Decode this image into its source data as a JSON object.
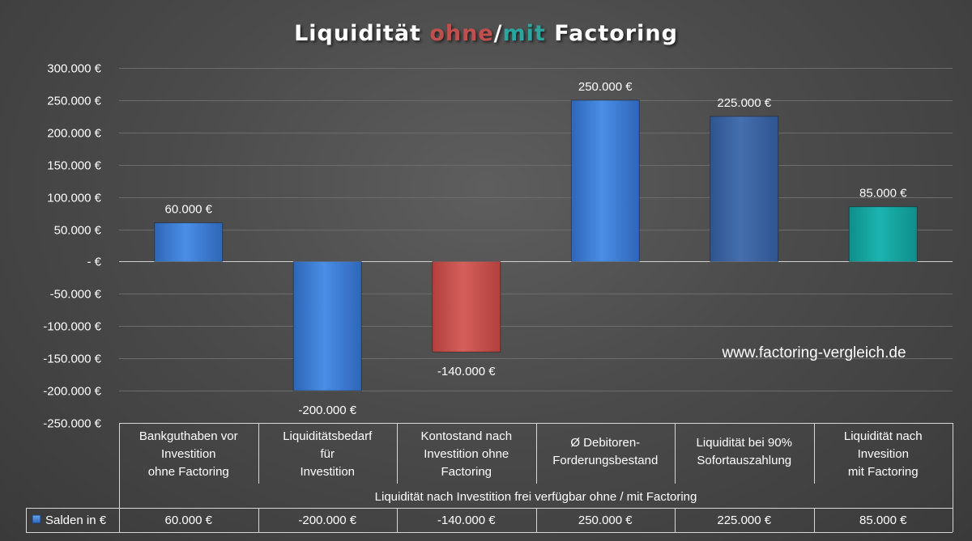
{
  "title": {
    "part1": "Liquidität ",
    "part2": "ohne",
    "part3": "/",
    "part4": "mit",
    "part5": " Factoring",
    "colors": {
      "main": "#ffffff",
      "ohne": "#c0504d",
      "mit": "#2aa5a0"
    }
  },
  "watermark": "www.factoring-vergleich.de",
  "chart_data": {
    "type": "bar",
    "title": "Liquidität ohne/mit Factoring",
    "categories": [
      [
        "Bankguthaben vor",
        "Investition",
        "ohne Factoring"
      ],
      [
        "Liquiditätsbedarf",
        "für",
        "Investition"
      ],
      [
        "Kontostand nach",
        "Investition ohne",
        "Factoring"
      ],
      [
        "Ø Debitoren-",
        "Forderungsbestand"
      ],
      [
        "Liquidität bei 90%",
        "Sofortauszahlung"
      ],
      [
        "Liquidität nach",
        "Invesition",
        "mit Factoring"
      ]
    ],
    "category_group_label": "Liquidität nach Investition frei verfügbar ohne / mit Factoring",
    "series": [
      {
        "name": "Salden in €",
        "values": [
          60000,
          -200000,
          -140000,
          250000,
          225000,
          85000
        ],
        "value_labels": [
          "60.000 €",
          "-200.000 €",
          "-140.000 €",
          "250.000 €",
          "225.000 €",
          "85.000 €"
        ],
        "colors": [
          "#3f7fd6",
          "#3f7fd6",
          "#c9524f",
          "#3f7fd6",
          "#3b66a3",
          "#16a8a4"
        ]
      }
    ],
    "ylim": [
      -250000,
      300000
    ],
    "y_ticks": [
      300000,
      250000,
      200000,
      150000,
      100000,
      50000,
      0,
      -50000,
      -100000,
      -150000,
      -200000,
      -250000
    ],
    "y_tick_labels": [
      "300.000 €",
      "250.000 €",
      "200.000 €",
      "150.000 €",
      "100.000 €",
      "50.000 €",
      "-  €",
      "-50.000 €",
      "-100.000 €",
      "-150.000 €",
      "-200.000 €",
      "-250.000 €"
    ],
    "grid": true,
    "legend": "data table"
  }
}
